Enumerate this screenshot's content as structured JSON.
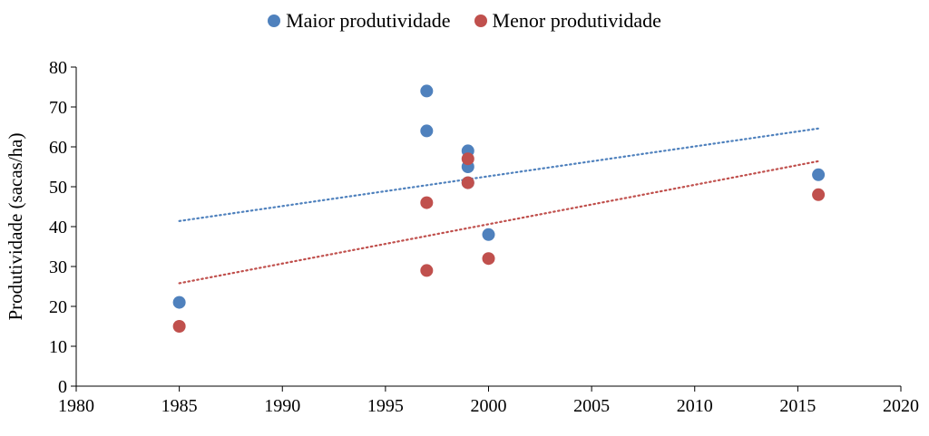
{
  "chart_data": {
    "type": "scatter",
    "title": "",
    "xlabel": "",
    "ylabel": "Produtividade (sacas/ha)",
    "xlim": [
      1980,
      2020
    ],
    "ylim": [
      0,
      80
    ],
    "xticks": [
      1980,
      1985,
      1990,
      1995,
      2000,
      2005,
      2010,
      2015,
      2020
    ],
    "yticks": [
      0,
      10,
      20,
      30,
      40,
      50,
      60,
      70,
      80
    ],
    "grid": false,
    "legend_position": "top-center",
    "series": [
      {
        "name": "Maior produtividade",
        "color": "#4F81BD",
        "points": [
          {
            "x": 1985,
            "y": 21
          },
          {
            "x": 1997,
            "y": 74
          },
          {
            "x": 1997,
            "y": 64
          },
          {
            "x": 1999,
            "y": 59
          },
          {
            "x": 1999,
            "y": 55
          },
          {
            "x": 1999,
            "y": 51
          },
          {
            "x": 2000,
            "y": 38
          },
          {
            "x": 2016,
            "y": 53
          }
        ],
        "trendline": {
          "type": "linear",
          "dotted": true,
          "x": [
            1985,
            2016
          ],
          "y": [
            41.4,
            64.6
          ]
        }
      },
      {
        "name": "Menor produtividade",
        "color": "#C0504D",
        "points": [
          {
            "x": 1985,
            "y": 15
          },
          {
            "x": 1997,
            "y": 46
          },
          {
            "x": 1997,
            "y": 29
          },
          {
            "x": 1999,
            "y": 57
          },
          {
            "x": 1999,
            "y": 51
          },
          {
            "x": 2000,
            "y": 32
          },
          {
            "x": 2016,
            "y": 48
          }
        ],
        "trendline": {
          "type": "linear",
          "dotted": true,
          "x": [
            1985,
            2016
          ],
          "y": [
            25.8,
            56.4
          ]
        }
      }
    ]
  }
}
